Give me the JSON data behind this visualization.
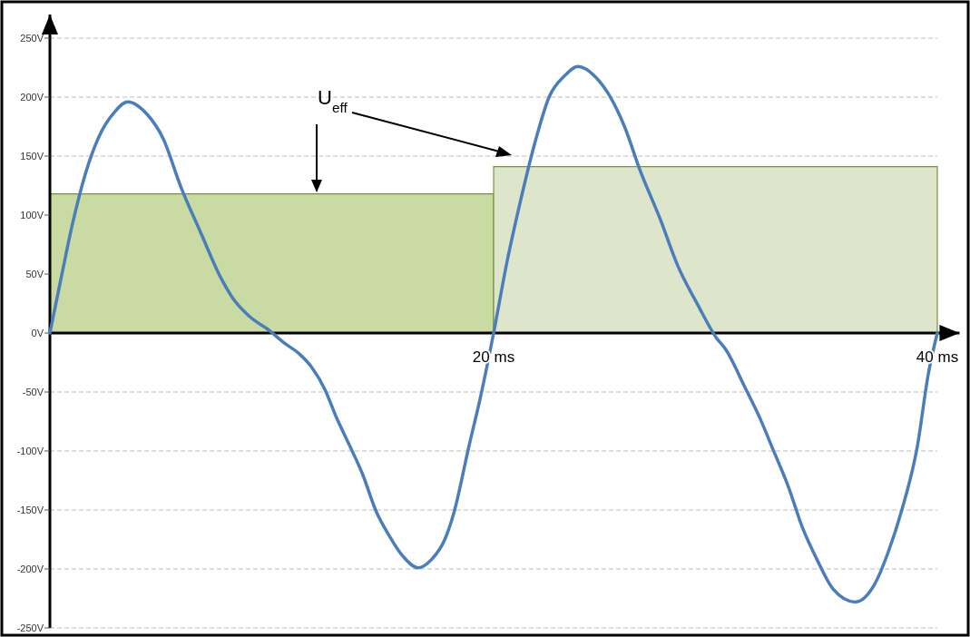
{
  "chart_data": {
    "type": "line",
    "xlim": [
      0,
      41
    ],
    "ylim": [
      -250,
      270
    ],
    "xticks": [
      {
        "value": 20,
        "label": "20 ms"
      },
      {
        "value": 40,
        "label": "40 ms"
      }
    ],
    "yticks": [
      {
        "value": -250,
        "label": "-250V"
      },
      {
        "value": -200,
        "label": "-200V"
      },
      {
        "value": -150,
        "label": "-150V"
      },
      {
        "value": -100,
        "label": "-100V"
      },
      {
        "value": -50,
        "label": "-50V"
      },
      {
        "value": 0,
        "label": "0V"
      },
      {
        "value": 50,
        "label": "50V"
      },
      {
        "value": 100,
        "label": "100V"
      },
      {
        "value": 150,
        "label": "150V"
      },
      {
        "value": 200,
        "label": "200V"
      },
      {
        "value": 250,
        "label": "250V"
      }
    ],
    "grid": "y",
    "series": [
      {
        "type": "area",
        "color": "#c9dba3",
        "x": [
          0,
          20
        ],
        "values": [
          118,
          118
        ]
      },
      {
        "type": "area",
        "color": "#dde6cb",
        "x": [
          20,
          40
        ],
        "values": [
          141,
          141
        ]
      },
      {
        "color": "#4a7ebb",
        "x": [
          0,
          0.53,
          1.0,
          1.6,
          2.2,
          2.9,
          3.5,
          4.4,
          5.1,
          5.9,
          6.8,
          7.7,
          8.3,
          9.0,
          9.9,
          10.6,
          11.2,
          11.8,
          12.4,
          12.9,
          13.5,
          14.1,
          14.7,
          15.3,
          15.9,
          16.6,
          17.2,
          17.8,
          18.2,
          18.9,
          19.4,
          20,
          20.6,
          21.2,
          21.9,
          22.5,
          23.2,
          23.8,
          24.6,
          25.2,
          25.9,
          26.6,
          27.5,
          28.3,
          29.2,
          30.0,
          30.5,
          31.3,
          32.0,
          32.6,
          33.3,
          33.9,
          34.6,
          35.3,
          36.3,
          37.2,
          37.8,
          38.4,
          39.1,
          39.6,
          40
        ],
        "values": [
          0,
          49,
          91,
          135,
          166,
          187,
          196,
          185,
          165,
          124,
          85,
          47,
          28,
          14,
          2,
          -9,
          -17,
          -29,
          -48,
          -71,
          -95,
          -120,
          -151,
          -172,
          -189,
          -199,
          -192,
          -175,
          -153,
          -95,
          -55,
          0,
          60,
          111,
          164,
          200,
          218,
          226,
          217,
          202,
          175,
          138,
          97,
          57,
          24,
          -3,
          -15,
          -45,
          -72,
          -99,
          -131,
          -164,
          -193,
          -217,
          -228,
          -212,
          -185,
          -150,
          -96,
          -34,
          0
        ]
      }
    ],
    "annotations": [
      "U$_{eff}$"
    ]
  }
}
